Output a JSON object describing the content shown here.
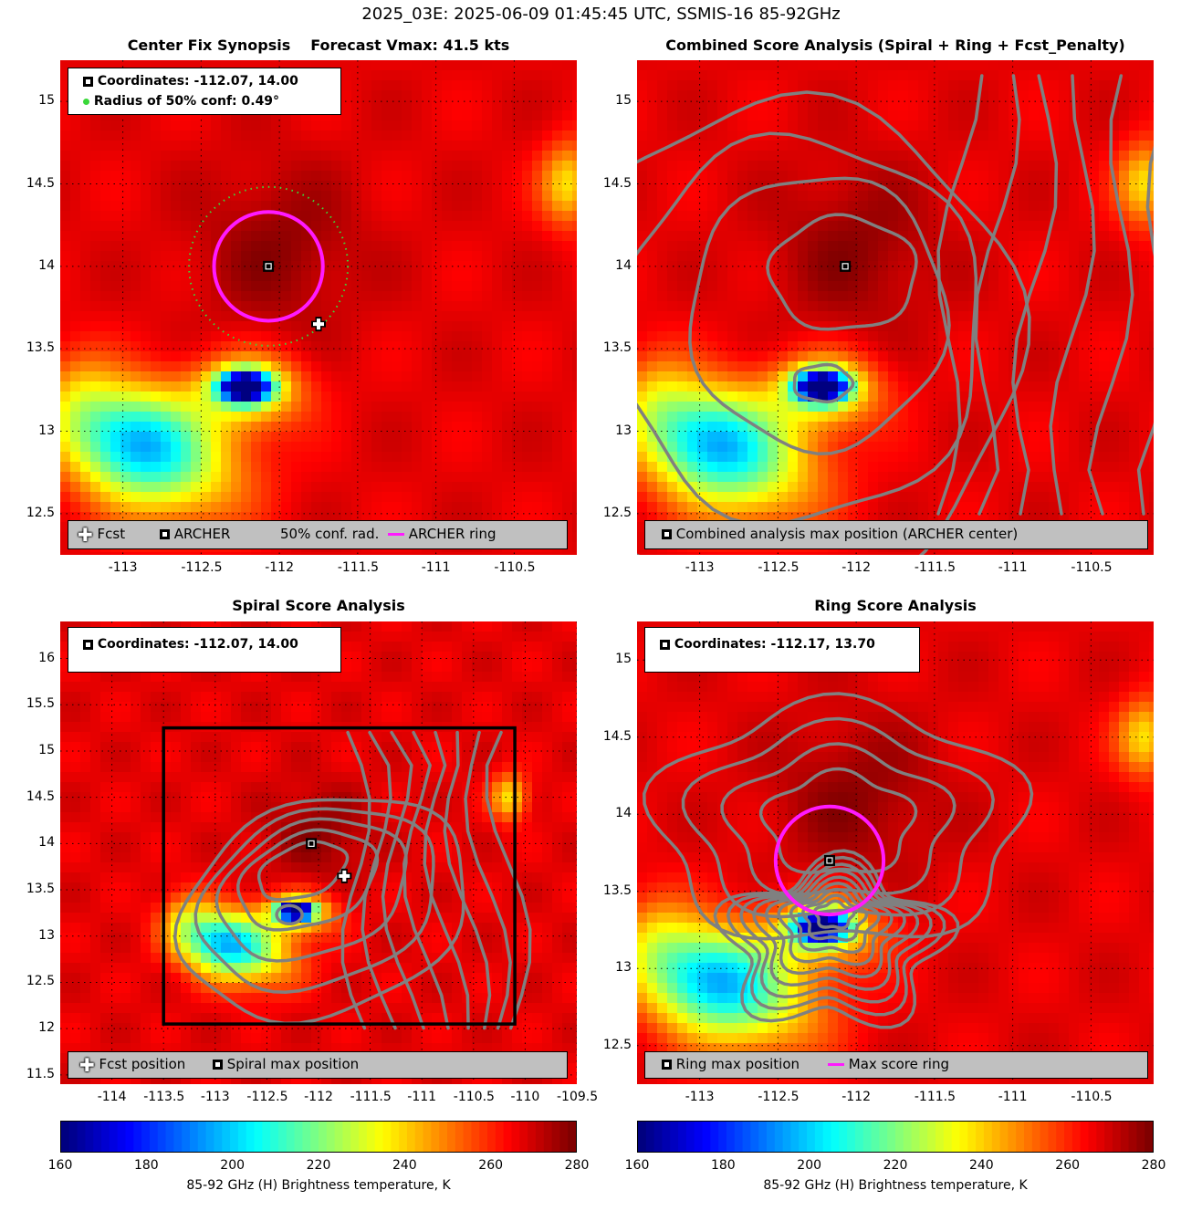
{
  "figure_title": "2025_03E: 2025-06-09 01:45:45 UTC, SSMIS-16 85-92GHz",
  "colors": {
    "ring": "#ff1aff",
    "contour": "#808080",
    "conf": "#3ad83a",
    "legend_bg": "#c0c0c0"
  },
  "panels": {
    "synopsis": {
      "title": "Center Fix Synopsis",
      "subtitle": "Forecast Vmax: 41.5 kts",
      "info": {
        "coords": "Coordinates: -112.07, 14.00",
        "radius": "Radius of 50% conf: 0.49°"
      },
      "legend": {
        "fcst": "Fcst",
        "archer": "ARCHER",
        "conf": "50% conf. rad.",
        "ring": "ARCHER ring"
      }
    },
    "combined": {
      "title": "Combined Score Analysis (Spiral + Ring + Fcst_Penalty)",
      "legend": {
        "max": "Combined analysis max position (ARCHER center)"
      }
    },
    "spiral": {
      "title": "Spiral Score Analysis",
      "info": {
        "coords": "Coordinates: -112.07, 14.00"
      },
      "legend": {
        "fcst": "Fcst position",
        "max": "Spiral max position"
      }
    },
    "ring": {
      "title": "Ring Score Analysis",
      "info": {
        "coords": "Coordinates: -112.17, 13.70"
      },
      "legend": {
        "max": "Ring max position",
        "ring": "Max score ring"
      }
    }
  },
  "colorbar": {
    "label": "85-92 GHz (H) Brightness temperature, K",
    "ticks": [
      "160",
      "180",
      "200",
      "220",
      "240",
      "260",
      "280"
    ]
  },
  "chart_data": [
    {
      "type": "heatmap",
      "name": "synopsis",
      "x_ticks": [
        "-113",
        "-112.5",
        "-112",
        "-111.5",
        "-111",
        "-110.5"
      ],
      "y_ticks": [
        "15",
        "14.5",
        "14",
        "13.5",
        "13",
        "12.5"
      ],
      "xlim": [
        -113.4,
        -110.1
      ],
      "ylim": [
        12.25,
        15.25
      ],
      "archer_center": [
        -112.07,
        14.0
      ],
      "fcst_position": [
        -111.75,
        13.65
      ],
      "ring_radius_deg": 0.33,
      "conf_radius_deg": 0.49,
      "colorscale_K": [
        160,
        280
      ]
    },
    {
      "type": "heatmap",
      "name": "combined",
      "x_ticks": [
        "-113",
        "-112.5",
        "-112",
        "-111.5",
        "-111",
        "-110.5"
      ],
      "y_ticks": [
        "15",
        "14.5",
        "14",
        "13.5",
        "13",
        "12.5"
      ],
      "xlim": [
        -113.4,
        -110.1
      ],
      "ylim": [
        12.25,
        15.25
      ],
      "max_position": [
        -112.07,
        14.0
      ]
    },
    {
      "type": "heatmap",
      "name": "spiral",
      "x_ticks": [
        "-114",
        "-113.5",
        "-113",
        "-112.5",
        "-112",
        "-111.5",
        "-111",
        "-110.5",
        "-110",
        "-109.5"
      ],
      "y_ticks": [
        "16",
        "15.5",
        "15",
        "14.5",
        "14",
        "13.5",
        "13",
        "12.5",
        "12",
        "11.5"
      ],
      "xlim": [
        -114.5,
        -109.5
      ],
      "ylim": [
        11.4,
        16.4
      ],
      "max_position": [
        -112.07,
        14.0
      ],
      "fcst_position": [
        -111.75,
        13.65
      ],
      "search_box": {
        "lon": [
          -113.5,
          -110.1
        ],
        "lat": [
          12.05,
          15.25
        ]
      }
    },
    {
      "type": "heatmap",
      "name": "ring",
      "x_ticks": [
        "-113",
        "-112.5",
        "-112",
        "-111.5",
        "-111",
        "-110.5"
      ],
      "y_ticks": [
        "15",
        "14.5",
        "14",
        "13.5",
        "13",
        "12.5"
      ],
      "xlim": [
        -113.4,
        -110.1
      ],
      "ylim": [
        12.25,
        15.25
      ],
      "max_position": [
        -112.17,
        13.7
      ],
      "ring_radius_deg": 0.35
    }
  ]
}
